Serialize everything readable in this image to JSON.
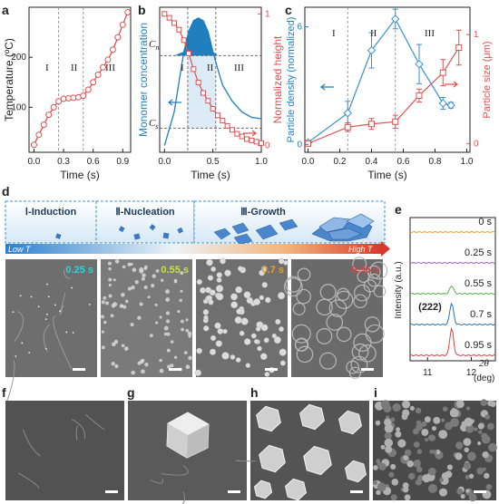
{
  "panel_labels": {
    "a": "a",
    "b": "b",
    "c": "c",
    "d": "d",
    "e": "e",
    "f": "f",
    "g": "g",
    "h": "h",
    "i": "i"
  },
  "chart_data": [
    {
      "id": "a",
      "type": "line",
      "xlabel": "Time (s)",
      "ylabel": "Temperature (ºC)",
      "xlim": [
        -0.05,
        0.98
      ],
      "ylim": [
        10,
        300
      ],
      "xticks": [
        0.0,
        0.3,
        0.6,
        0.9
      ],
      "xtick_labels": [
        "0.0",
        "0.3",
        "0.6",
        "0.9"
      ],
      "yticks": [
        100,
        200
      ],
      "ytick_labels": [
        "100",
        "200"
      ],
      "phase_labels": [
        "I",
        "II",
        "III"
      ],
      "phase_dividers": [
        0.25,
        0.5
      ],
      "x": [
        0.0,
        0.05,
        0.1,
        0.15,
        0.2,
        0.25,
        0.3,
        0.35,
        0.4,
        0.45,
        0.5,
        0.55,
        0.6,
        0.65,
        0.7,
        0.75,
        0.8,
        0.85,
        0.9,
        0.95
      ],
      "y": [
        25,
        45,
        65,
        85,
        100,
        112,
        117,
        118,
        119,
        120,
        123,
        135,
        150,
        165,
        180,
        195,
        215,
        240,
        265,
        290
      ],
      "color": "#e05050"
    },
    {
      "id": "b",
      "type": "line",
      "xlabel": "Time (s)",
      "ylabel_left": "Monomer concentration",
      "ylabel_right": "Normalized height",
      "xlim": [
        -0.05,
        1.0
      ],
      "xticks": [
        0.0,
        0.5,
        1.0
      ],
      "xtick_labels": [
        "0.0",
        "0.5",
        "1.0"
      ],
      "yticks_right": [
        0,
        1
      ],
      "ytick_labels_right": [
        "0",
        "1"
      ],
      "c_labels": [
        "C",
        "n",
        "C",
        "s"
      ],
      "phase_labels": [
        "I",
        "II",
        "III"
      ],
      "phase_dividers": [
        0.24,
        0.53
      ],
      "concentration": {
        "x": [
          0.0,
          0.1,
          0.2,
          0.25,
          0.3,
          0.35,
          0.4,
          0.45,
          0.5,
          0.55,
          0.6,
          0.7,
          0.8,
          0.9,
          1.0
        ],
        "y": [
          0.05,
          0.3,
          0.75,
          0.9,
          0.98,
          1.0,
          0.98,
          0.9,
          0.75,
          0.62,
          0.5,
          0.38,
          0.3,
          0.26,
          0.25
        ],
        "color": "#1f7fbf"
      },
      "height": {
        "x": [
          0.0,
          0.05,
          0.1,
          0.15,
          0.2,
          0.25,
          0.3,
          0.35,
          0.4,
          0.45,
          0.5,
          0.55,
          0.6,
          0.65,
          0.7,
          0.75,
          0.8,
          0.85,
          0.9,
          0.95,
          1.0
        ],
        "y": [
          1.0,
          0.97,
          0.93,
          0.88,
          0.8,
          0.7,
          0.58,
          0.48,
          0.4,
          0.34,
          0.28,
          0.23,
          0.19,
          0.15,
          0.12,
          0.09,
          0.07,
          0.05,
          0.04,
          0.03,
          0.02
        ],
        "color": "#e05050"
      }
    },
    {
      "id": "c",
      "type": "line",
      "xlabel": "Time (s)",
      "ylabel_left": "Particle density (normalized)",
      "ylabel_right": "Particle size (μm)",
      "xlim": [
        -0.02,
        1.02
      ],
      "xticks": [
        0.0,
        0.2,
        0.4,
        0.6,
        0.8,
        1.0
      ],
      "xtick_labels": [
        "0.0",
        "0.2",
        "0.4",
        "0.6",
        "0.8",
        "1.0"
      ],
      "yticks_left": [
        0,
        6
      ],
      "ytick_labels_left": [
        "0",
        "6"
      ],
      "yticks_right": [
        0,
        1
      ],
      "ytick_labels_right": [
        "0",
        "1"
      ],
      "phase_labels": [
        "I",
        "II",
        "III"
      ],
      "phase_dividers": [
        0.25,
        0.55
      ],
      "density": {
        "x": [
          0.0,
          0.25,
          0.4,
          0.55,
          0.7,
          0.85,
          0.9
        ],
        "y": [
          0.1,
          1.6,
          4.8,
          6.4,
          4.1,
          2.1,
          2.0
        ],
        "err": [
          0.1,
          0.6,
          0.9,
          0.5,
          1.0,
          0.3,
          0.15
        ],
        "color": "#3a8fcf"
      },
      "size": {
        "x": [
          0.0,
          0.25,
          0.4,
          0.55,
          0.7,
          0.85,
          0.95
        ],
        "y": [
          0.0,
          0.15,
          0.18,
          0.2,
          0.44,
          0.65,
          0.88
        ],
        "err": [
          0.01,
          0.04,
          0.05,
          0.06,
          0.06,
          0.12,
          0.16
        ],
        "color": "#e05050"
      }
    },
    {
      "id": "e",
      "type": "line",
      "ylabel": "Intensity (a.u.)",
      "xlabel": "2θ",
      "xunit": "(deg)",
      "xlim": [
        10.6,
        12.55
      ],
      "xticks": [
        11,
        12
      ],
      "xtick_labels": [
        "11",
        "12"
      ],
      "peak_label": "(222)",
      "peak_position": 11.55,
      "series": [
        {
          "name": "0 s",
          "peak": 0.0,
          "color": "#f0a030"
        },
        {
          "name": "0.25 s",
          "peak": 0.0,
          "color": "#a060c0"
        },
        {
          "name": "0.55 s",
          "peak": 0.3,
          "color": "#50b050"
        },
        {
          "name": "0.7 s",
          "peak": 0.8,
          "color": "#2a70b0"
        },
        {
          "name": "0.95 s",
          "peak": 1.0,
          "color": "#e04040"
        }
      ]
    }
  ],
  "panel_d": {
    "stages": [
      "Ⅰ-Induction",
      "Ⅱ-Nucleation",
      "Ⅲ-Growth"
    ],
    "gradient_low": "Low T",
    "gradient_high": "High T",
    "sem_times": [
      {
        "label": "0.25 s",
        "color": "#28d8d8"
      },
      {
        "label": "0.55 s",
        "color": "#c8e040"
      },
      {
        "label": "0.7 s",
        "color": "#f0a020"
      },
      {
        "label": "0.95 s",
        "color": "#e04040"
      }
    ]
  },
  "colors": {
    "blue": "#1f7fbf",
    "red": "#e05050",
    "axis": "#222222",
    "sem_dark": "#5a5a5a"
  }
}
